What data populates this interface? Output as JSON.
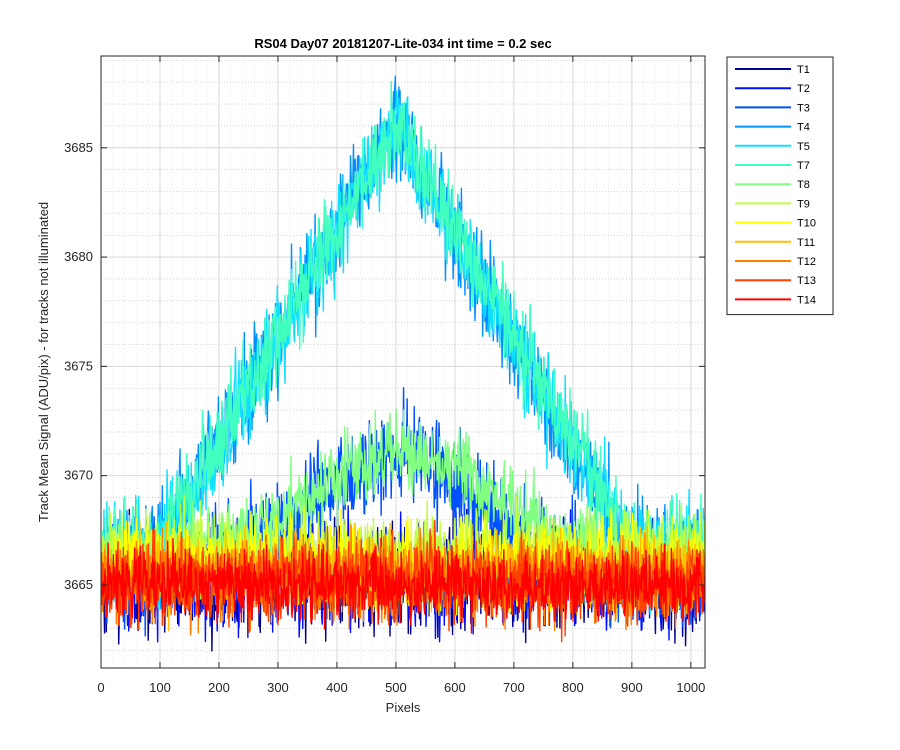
{
  "chart_data": {
    "type": "line",
    "title": "RS04 Day07 20181207-Lite-034 int time = 0.2 sec",
    "xlabel": "Pixels",
    "ylabel": "Track Mean Signal (ADU/pix) - for tracks not illuminated",
    "xlim": [
      0,
      1024
    ],
    "ylim": [
      3661.2,
      3689.2
    ],
    "x_ticks": [
      0,
      100,
      200,
      300,
      400,
      500,
      600,
      700,
      800,
      900,
      1000
    ],
    "y_ticks": [
      3665,
      3670,
      3675,
      3680,
      3685
    ],
    "grid": true,
    "minor_grid": true,
    "legend_position": "outside-top-right",
    "x_points": 1024,
    "series": [
      {
        "name": "T1",
        "color": "#00008f",
        "shape": "flat",
        "base": 3665.2,
        "noise": 2.6
      },
      {
        "name": "T2",
        "color": "#0010ff",
        "shape": "flat",
        "base": 3665.4,
        "noise": 2.6
      },
      {
        "name": "T3",
        "color": "#0050ff",
        "shape": "bump",
        "base": 3665.5,
        "peak": 3670.8,
        "center": 500,
        "width": 210,
        "noise": 2.4
      },
      {
        "name": "T4",
        "color": "#0090ff",
        "shape": "triangle",
        "base": 3666.5,
        "peak": 3686.0,
        "center": 495,
        "halfwidth": 400,
        "noise": 2.4
      },
      {
        "name": "T5",
        "color": "#10dfff",
        "shape": "triangle",
        "base": 3666.5,
        "peak": 3686.0,
        "center": 500,
        "halfwidth": 400,
        "noise": 2.4
      },
      {
        "name": "T7",
        "color": "#40ffbf",
        "shape": "triangle",
        "base": 3666.8,
        "peak": 3686.0,
        "center": 500,
        "halfwidth": 400,
        "noise": 2.2
      },
      {
        "name": "T8",
        "color": "#80ff80",
        "shape": "bump",
        "base": 3666.2,
        "peak": 3671.0,
        "center": 510,
        "width": 220,
        "noise": 2.0
      },
      {
        "name": "T9",
        "color": "#bfff40",
        "shape": "flat",
        "base": 3666.5,
        "noise": 2.0
      },
      {
        "name": "T10",
        "color": "#ffff00",
        "shape": "flat",
        "base": 3666.0,
        "noise": 2.0
      },
      {
        "name": "T11",
        "color": "#ffbf00",
        "shape": "flat",
        "base": 3665.6,
        "noise": 2.0
      },
      {
        "name": "T12",
        "color": "#ff8000",
        "shape": "flat",
        "base": 3665.3,
        "noise": 2.0
      },
      {
        "name": "T13",
        "color": "#ff4000",
        "shape": "flat",
        "base": 3665.1,
        "noise": 2.0
      },
      {
        "name": "T14",
        "color": "#ff0000",
        "shape": "flat",
        "base": 3665.0,
        "noise": 1.7
      }
    ]
  }
}
